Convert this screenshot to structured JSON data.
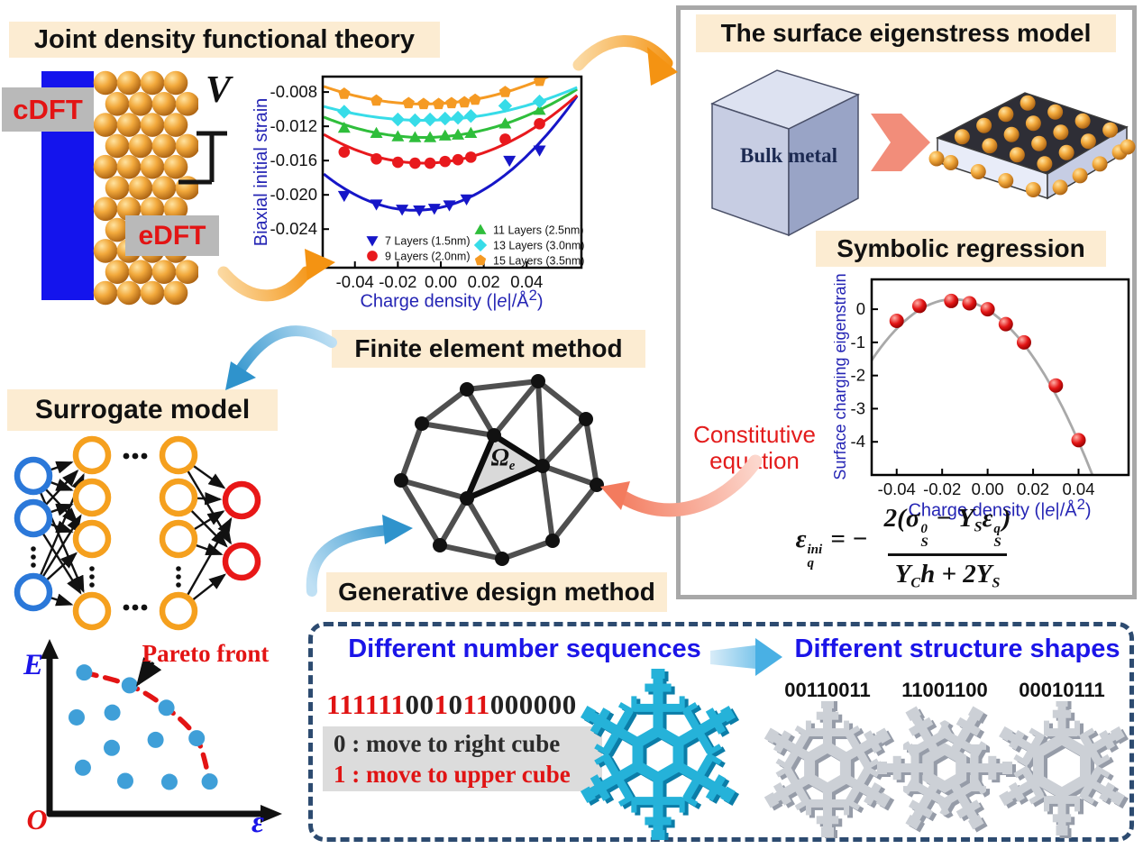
{
  "colors": {
    "accent_cream": "#fcecd2",
    "panel_border": "#a8a8a8",
    "dashed_border": "#2d4b70",
    "blue_heading": "#1b15e8",
    "axis_label_blue": "#2424b4",
    "red_text": "#e31414",
    "sequence_one": "#e01313",
    "sequence_zero": "#222222",
    "gold_sphere": "#f2a93c",
    "electrode_blue": "#1414ed",
    "teal_structure": "#25b2d9",
    "gray_structure": "#ccd0d6"
  },
  "jdft": {
    "title": "Joint density functional theory",
    "cdft": "cDFT",
    "edft": "eDFT",
    "voltage": "V"
  },
  "eigenstress": {
    "title": "The surface eigenstress model",
    "cube_label": "Bulk metal"
  },
  "symbolic": {
    "title": "Symbolic regression"
  },
  "constitutive": {
    "line1": "Constitutive",
    "line2": "equation"
  },
  "equation": {
    "lhs_html": "ε<span class=\"ss\"><span class=\"sup\">ini</span><span class=\"sub\">q</span></span><span style=\"margin-left:8px\">= −</span>",
    "numerator_html": "2(σ<span class=\"ss\"><span class=\"sup\">0</span><span class=\"sub\">S</span></span> − Y<span class=\"subi\">S</span>ε<span class=\"ss\"><span class=\"sup\">q</span><span class=\"sub\">S</span></span>)",
    "denominator_html": "Y<span class=\"subi\">C</span>h + 2Y<span class=\"subi\">S</span>"
  },
  "fem": {
    "title": "Finite element method",
    "element_html": "Ω<span class=\"subi\">e</span>"
  },
  "surrogate": {
    "title": "Surrogate model",
    "layers": {
      "input": 3,
      "hidden": [
        4,
        4
      ],
      "output": 2
    },
    "node_colors": {
      "input": "#2b78d9",
      "hidden": "#f5a01e",
      "output": "#e81717"
    }
  },
  "pareto": {
    "axis_y": "E",
    "axis_x": "ε",
    "origin": "O",
    "annotation": "Pareto front"
  },
  "generative": {
    "title": "Generative design method",
    "sequences_title": "Different number sequences",
    "sequence": "111111001011000000",
    "rule_zero": "0 : move to right cube",
    "rule_one": "1 : move to upper cube",
    "shapes_title": "Different structure shapes",
    "shape_labels": [
      "00110011",
      "11001100",
      "00010111"
    ]
  },
  "chart_data": [
    {
      "id": "biaxial-strain",
      "type": "scatter",
      "xlabel_html": "Charge density (|<i>e</i>|/Å<sup>2</sup>)",
      "xlabel": "Charge density (|e|/Å2)",
      "ylabel": "Biaxial initial strain",
      "xticks": [
        -0.04,
        -0.02,
        0.0,
        0.02,
        0.04
      ],
      "yticks": [
        -0.008,
        -0.012,
        -0.016,
        -0.02,
        -0.024
      ],
      "xlim": [
        -0.055,
        0.0655
      ],
      "ylim": [
        -0.0285,
        -0.0062
      ],
      "grid": false,
      "legend_position": "inside-bottom",
      "series": [
        {
          "name": "7 Layers (1.5nm)",
          "color": "#1616c8",
          "marker": "triangle-down",
          "fit_vertex": [
            -0.012,
            -0.0218
          ],
          "fit_a": 2.34,
          "x": [
            -0.045,
            -0.03,
            -0.018,
            -0.01,
            -0.003,
            0.004,
            0.012,
            0.032,
            0.046
          ],
          "y": [
            -0.0201,
            -0.0211,
            -0.0217,
            -0.0218,
            -0.0216,
            -0.0212,
            -0.0205,
            -0.016,
            -0.0148
          ]
        },
        {
          "name": "9 Layers (2.0nm)",
          "color": "#e8191d",
          "marker": "circle",
          "fit_vertex": [
            -0.008,
            -0.0163
          ],
          "fit_a": 1.55,
          "x": [
            -0.045,
            -0.03,
            -0.02,
            -0.012,
            -0.005,
            0.002,
            0.008,
            0.014,
            0.03,
            0.046
          ],
          "y": [
            -0.015,
            -0.0158,
            -0.0162,
            -0.0163,
            -0.0163,
            -0.0161,
            -0.0159,
            -0.0156,
            -0.0135,
            -0.0117
          ]
        },
        {
          "name": "11 Layers (2.5nm)",
          "color": "#2fbe3b",
          "marker": "triangle-up",
          "fit_vertex": [
            -0.008,
            -0.0133
          ],
          "fit_a": 1.1,
          "x": [
            -0.045,
            -0.03,
            -0.02,
            -0.012,
            -0.005,
            0.002,
            0.008,
            0.014,
            0.03,
            0.046
          ],
          "y": [
            -0.0122,
            -0.0128,
            -0.0132,
            -0.0133,
            -0.0133,
            -0.0131,
            -0.013,
            -0.0128,
            -0.0117,
            -0.0101
          ]
        },
        {
          "name": "13 Layers (3.0nm)",
          "color": "#37dce8",
          "marker": "diamond",
          "fit_vertex": [
            -0.008,
            -0.0113
          ],
          "fit_a": 0.75,
          "x": [
            -0.045,
            -0.02,
            -0.012,
            -0.005,
            0.002,
            0.008,
            0.014,
            0.03,
            0.046
          ],
          "y": [
            -0.0103,
            -0.0112,
            -0.0113,
            -0.0112,
            -0.0111,
            -0.011,
            -0.0108,
            -0.0096,
            -0.0091
          ]
        },
        {
          "name": "15 Layers (3.5nm)",
          "color": "#f59a23",
          "marker": "pentagon",
          "fit_vertex": [
            -0.008,
            -0.0094
          ],
          "fit_a": 0.95,
          "x": [
            -0.045,
            -0.03,
            -0.015,
            -0.008,
            -0.001,
            0.005,
            0.011,
            0.016,
            0.03,
            0.046
          ],
          "y": [
            -0.0082,
            -0.009,
            -0.0093,
            -0.0094,
            -0.0094,
            -0.0093,
            -0.0092,
            -0.0089,
            -0.008,
            -0.0067
          ]
        }
      ]
    },
    {
      "id": "charging-eigenstrain",
      "type": "scatter",
      "xlabel_html": "Charge density (|<i>e</i>|/Å<sup>2</sup>)",
      "xlabel": "Charge density (|e|/Å2)",
      "ylabel": "Surface charging eigenstrain",
      "xticks": [
        -0.04,
        -0.02,
        0.0,
        0.02,
        0.04
      ],
      "yticks": [
        0,
        -1,
        -2,
        -3,
        -4
      ],
      "xlim": [
        -0.051,
        0.062
      ],
      "ylim": [
        -5.0,
        0.9
      ],
      "point_color": "#e31515",
      "curve_color": "#a9a9a9",
      "fit_curve": {
        "vertex": [
          -0.015,
          0.3
        ],
        "a": -1420
      },
      "points_x": [
        -0.04,
        -0.03,
        -0.016,
        -0.008,
        0.0,
        0.008,
        0.016,
        0.03,
        0.04
      ],
      "points_y": [
        -0.35,
        0.1,
        0.25,
        0.18,
        0.0,
        -0.45,
        -1.0,
        -2.3,
        -3.95
      ]
    },
    {
      "id": "pareto-front",
      "type": "scatter",
      "xlabel": "ε",
      "ylabel": "E",
      "annotation": "Pareto front",
      "front_points": [
        [
          0.16,
          0.87
        ],
        [
          0.37,
          0.79
        ],
        [
          0.54,
          0.65
        ],
        [
          0.68,
          0.46
        ],
        [
          0.74,
          0.19
        ]
      ],
      "interior_points": [
        [
          0.125,
          0.59
        ],
        [
          0.29,
          0.62
        ],
        [
          0.49,
          0.45
        ],
        [
          0.2875,
          0.4
        ],
        [
          0.154,
          0.2765
        ],
        [
          0.35,
          0.194
        ],
        [
          0.554,
          0.188
        ]
      ],
      "point_color": "#3f9fd8",
      "front_color": "#e31414"
    }
  ]
}
